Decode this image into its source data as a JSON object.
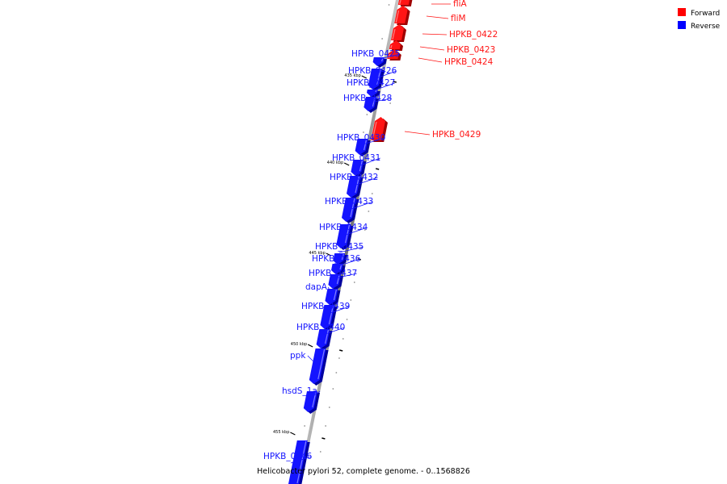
{
  "legend": [
    {
      "label": "Forward",
      "color": "#ff0000"
    },
    {
      "label": "Reverse",
      "color": "#0000ff"
    }
  ],
  "caption": "Helicobacter pylori 52, complete genome. - 0..1568826",
  "ticks": [
    "435 kbp",
    "440 kbp",
    "445 kbp",
    "450 kbp",
    "455 kbp"
  ],
  "genes": [
    {
      "name": "fliA",
      "strand": "forward"
    },
    {
      "name": "fliM",
      "strand": "forward"
    },
    {
      "name": "HPKB_0422",
      "strand": "forward"
    },
    {
      "name": "HPKB_0423",
      "strand": "forward"
    },
    {
      "name": "HPKB_0424",
      "strand": "forward"
    },
    {
      "name": "HPKB_0425",
      "strand": "reverse"
    },
    {
      "name": "HPKB_0426",
      "strand": "reverse"
    },
    {
      "name": "HPKB_0427",
      "strand": "reverse"
    },
    {
      "name": "HPKB_0428",
      "strand": "reverse"
    },
    {
      "name": "HPKB_0429",
      "strand": "forward"
    },
    {
      "name": "HPKB_0430",
      "strand": "reverse"
    },
    {
      "name": "HPKB_0431",
      "strand": "reverse"
    },
    {
      "name": "HPKB_0432",
      "strand": "reverse"
    },
    {
      "name": "HPKB_0433",
      "strand": "reverse"
    },
    {
      "name": "HPKB_0434",
      "strand": "reverse"
    },
    {
      "name": "HPKB_0435",
      "strand": "reverse"
    },
    {
      "name": "HPKB_0436",
      "strand": "reverse"
    },
    {
      "name": "HPKB_0437",
      "strand": "reverse"
    },
    {
      "name": "dapA",
      "strand": "reverse"
    },
    {
      "name": "HPKB_0439",
      "strand": "reverse"
    },
    {
      "name": "HPKB_0440",
      "strand": "reverse"
    },
    {
      "name": "ppk",
      "strand": "reverse"
    },
    {
      "name": "hsdS_1a",
      "strand": "reverse"
    },
    {
      "name": "HPKB_0446",
      "strand": "reverse"
    }
  ]
}
